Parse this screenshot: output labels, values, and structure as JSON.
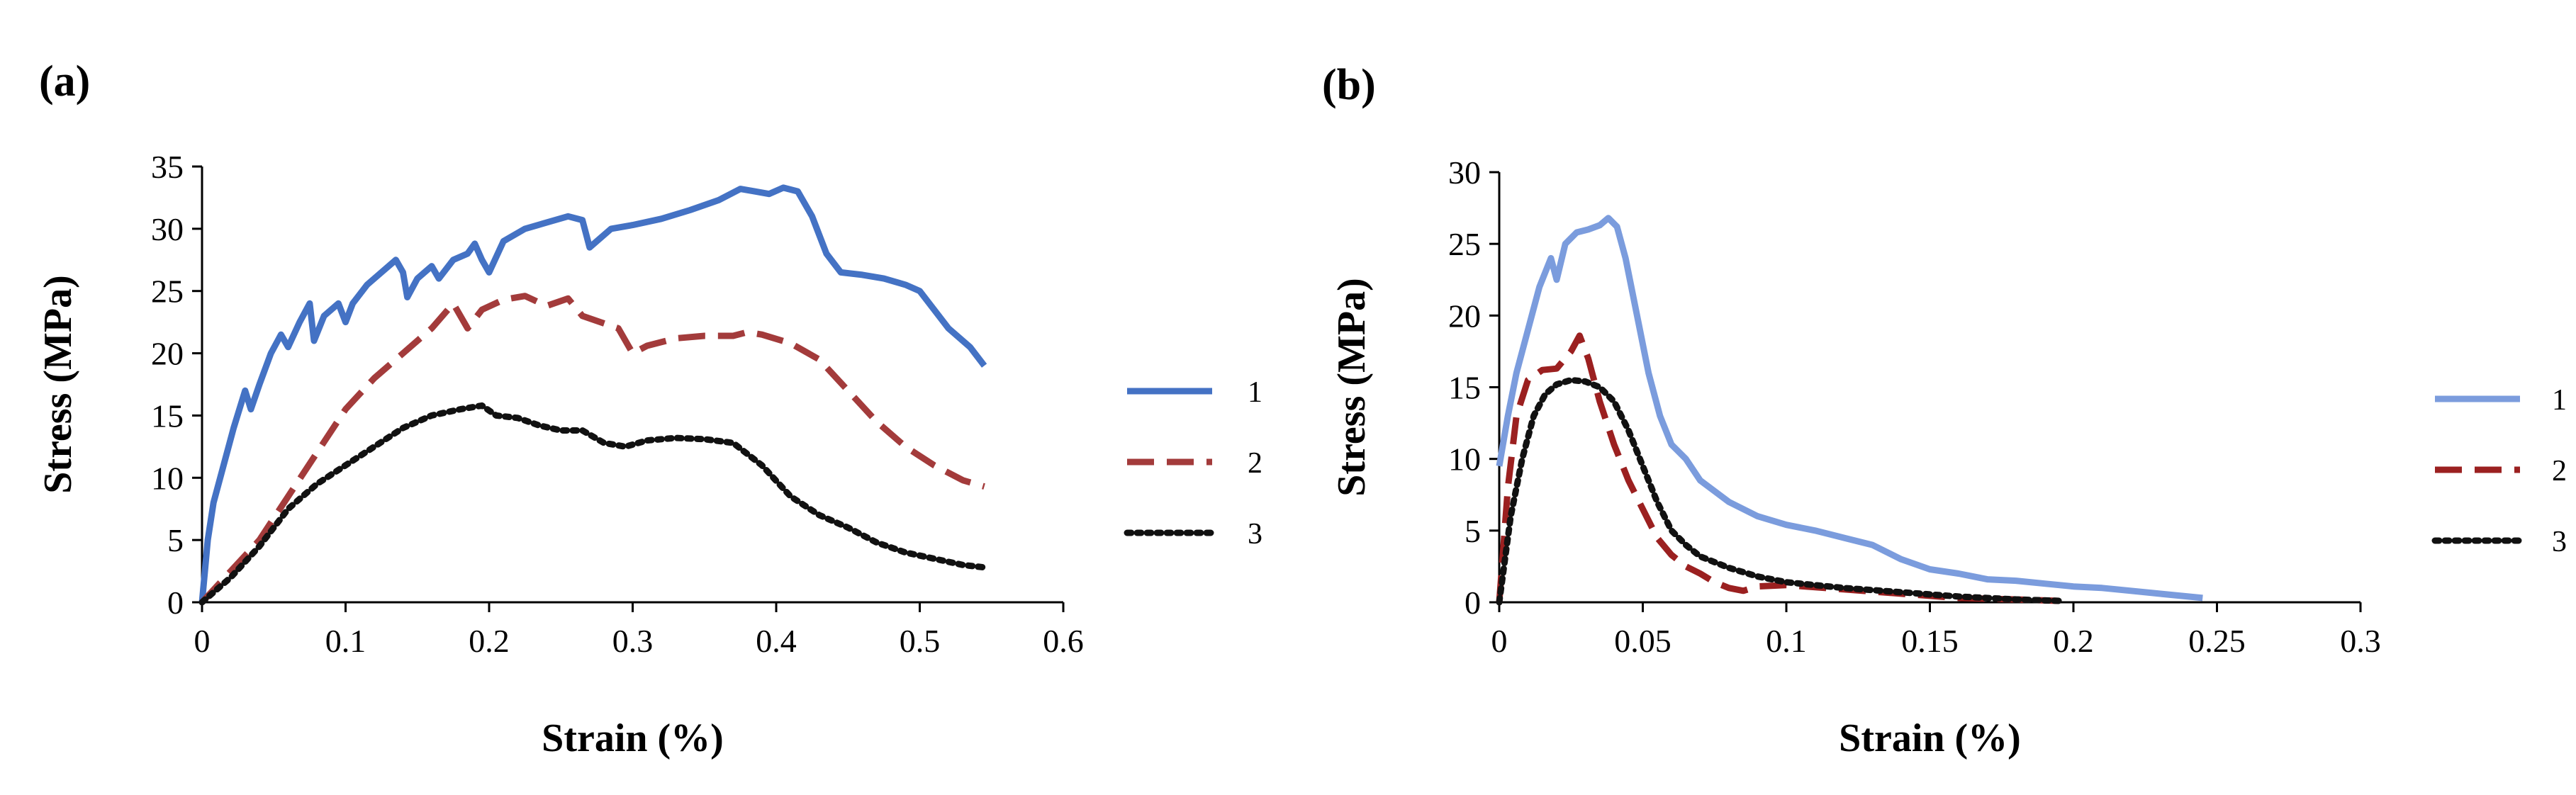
{
  "chart_data": [
    {
      "panel_label": "(a)",
      "type": "line",
      "xlabel": "Strain (%)",
      "ylabel": "Stress (MPa)",
      "xlim": [
        0,
        0.6
      ],
      "ylim": [
        0,
        35
      ],
      "x_ticks": [
        0,
        0.1,
        0.2,
        0.3,
        0.4,
        0.5,
        0.6
      ],
      "x_tick_labels": [
        "0",
        "0.1",
        "0.2",
        "0.3",
        "0.4",
        "0.5",
        "0.6"
      ],
      "y_ticks": [
        0,
        5,
        10,
        15,
        20,
        25,
        30,
        35
      ],
      "y_tick_labels": [
        "0",
        "5",
        "10",
        "15",
        "20",
        "25",
        "30",
        "35"
      ],
      "grid": false,
      "legend_position": "right",
      "series": [
        {
          "name": "1",
          "color": "#4472C4",
          "dash": "solid",
          "points": [
            [
              0,
              0
            ],
            [
              0.004,
              5
            ],
            [
              0.008,
              8
            ],
            [
              0.015,
              11
            ],
            [
              0.022,
              14
            ],
            [
              0.03,
              17
            ],
            [
              0.034,
              15.5
            ],
            [
              0.04,
              17.5
            ],
            [
              0.048,
              20
            ],
            [
              0.055,
              21.5
            ],
            [
              0.06,
              20.5
            ],
            [
              0.068,
              22.5
            ],
            [
              0.075,
              24
            ],
            [
              0.078,
              21
            ],
            [
              0.085,
              23
            ],
            [
              0.095,
              24
            ],
            [
              0.1,
              22.5
            ],
            [
              0.105,
              24
            ],
            [
              0.115,
              25.5
            ],
            [
              0.125,
              26.5
            ],
            [
              0.135,
              27.5
            ],
            [
              0.14,
              26.5
            ],
            [
              0.143,
              24.5
            ],
            [
              0.15,
              26
            ],
            [
              0.16,
              27
            ],
            [
              0.165,
              26
            ],
            [
              0.175,
              27.5
            ],
            [
              0.185,
              28
            ],
            [
              0.19,
              28.8
            ],
            [
              0.195,
              27.5
            ],
            [
              0.2,
              26.5
            ],
            [
              0.21,
              29
            ],
            [
              0.225,
              30
            ],
            [
              0.24,
              30.5
            ],
            [
              0.255,
              31
            ],
            [
              0.265,
              30.7
            ],
            [
              0.27,
              28.5
            ],
            [
              0.285,
              30
            ],
            [
              0.3,
              30.3
            ],
            [
              0.32,
              30.8
            ],
            [
              0.34,
              31.5
            ],
            [
              0.36,
              32.3
            ],
            [
              0.375,
              33.2
            ],
            [
              0.385,
              33
            ],
            [
              0.395,
              32.8
            ],
            [
              0.405,
              33.3
            ],
            [
              0.415,
              33
            ],
            [
              0.425,
              31
            ],
            [
              0.435,
              28
            ],
            [
              0.445,
              26.5
            ],
            [
              0.46,
              26.3
            ],
            [
              0.475,
              26
            ],
            [
              0.49,
              25.5
            ],
            [
              0.5,
              25
            ],
            [
              0.51,
              23.5
            ],
            [
              0.52,
              22
            ],
            [
              0.535,
              20.5
            ],
            [
              0.545,
              19
            ]
          ]
        },
        {
          "name": "2",
          "color": "#A33B3B",
          "dash": "dashed",
          "points": [
            [
              0,
              0
            ],
            [
              0.02,
              2.5
            ],
            [
              0.04,
              5
            ],
            [
              0.06,
              8.5
            ],
            [
              0.08,
              12
            ],
            [
              0.1,
              15.5
            ],
            [
              0.12,
              18
            ],
            [
              0.14,
              20
            ],
            [
              0.16,
              22
            ],
            [
              0.175,
              24
            ],
            [
              0.185,
              22
            ],
            [
              0.195,
              23.5
            ],
            [
              0.21,
              24.3
            ],
            [
              0.225,
              24.6
            ],
            [
              0.24,
              23.8
            ],
            [
              0.255,
              24.4
            ],
            [
              0.265,
              23
            ],
            [
              0.28,
              22.4
            ],
            [
              0.29,
              22
            ],
            [
              0.3,
              20
            ],
            [
              0.31,
              20.6
            ],
            [
              0.33,
              21.2
            ],
            [
              0.35,
              21.4
            ],
            [
              0.37,
              21.4
            ],
            [
              0.38,
              21.7
            ],
            [
              0.39,
              21.5
            ],
            [
              0.41,
              20.8
            ],
            [
              0.43,
              19.5
            ],
            [
              0.45,
              17
            ],
            [
              0.47,
              14.5
            ],
            [
              0.49,
              12.5
            ],
            [
              0.51,
              11
            ],
            [
              0.53,
              9.8
            ],
            [
              0.545,
              9.3
            ]
          ]
        },
        {
          "name": "3",
          "color": "#111111",
          "dash": "dotted",
          "points": [
            [
              0,
              0
            ],
            [
              0.02,
              2
            ],
            [
              0.04,
              4.5
            ],
            [
              0.06,
              7.5
            ],
            [
              0.08,
              9.5
            ],
            [
              0.1,
              11
            ],
            [
              0.12,
              12.5
            ],
            [
              0.14,
              14
            ],
            [
              0.16,
              15
            ],
            [
              0.18,
              15.5
            ],
            [
              0.195,
              15.8
            ],
            [
              0.205,
              15
            ],
            [
              0.22,
              14.8
            ],
            [
              0.235,
              14.2
            ],
            [
              0.25,
              13.8
            ],
            [
              0.265,
              13.8
            ],
            [
              0.28,
              12.8
            ],
            [
              0.295,
              12.5
            ],
            [
              0.31,
              13
            ],
            [
              0.33,
              13.2
            ],
            [
              0.35,
              13.1
            ],
            [
              0.37,
              12.8
            ],
            [
              0.39,
              11
            ],
            [
              0.41,
              8.5
            ],
            [
              0.43,
              7
            ],
            [
              0.45,
              6
            ],
            [
              0.47,
              4.8
            ],
            [
              0.49,
              4
            ],
            [
              0.51,
              3.5
            ],
            [
              0.53,
              3
            ],
            [
              0.545,
              2.8
            ]
          ]
        }
      ]
    },
    {
      "panel_label": "(b)",
      "type": "line",
      "xlabel": "Strain (%)",
      "ylabel": "Stress (MPa)",
      "xlim": [
        0,
        0.3
      ],
      "ylim": [
        0,
        30
      ],
      "x_ticks": [
        0,
        0.05,
        0.1,
        0.15,
        0.2,
        0.25,
        0.3
      ],
      "x_tick_labels": [
        "0",
        "0.05",
        "0.1",
        "0.15",
        "0.2",
        "0.25",
        "0.3"
      ],
      "y_ticks": [
        0,
        5,
        10,
        15,
        20,
        25,
        30
      ],
      "y_tick_labels": [
        "0",
        "5",
        "10",
        "15",
        "20",
        "25",
        "30"
      ],
      "grid": false,
      "legend_position": "right",
      "series": [
        {
          "name": "1",
          "color": "#7B9CDD",
          "dash": "solid",
          "points": [
            [
              0,
              9.5
            ],
            [
              0.003,
              13
            ],
            [
              0.006,
              16
            ],
            [
              0.01,
              19
            ],
            [
              0.014,
              22
            ],
            [
              0.018,
              24
            ],
            [
              0.02,
              22.5
            ],
            [
              0.023,
              25
            ],
            [
              0.027,
              25.8
            ],
            [
              0.031,
              26
            ],
            [
              0.035,
              26.3
            ],
            [
              0.038,
              26.8
            ],
            [
              0.041,
              26.2
            ],
            [
              0.044,
              24
            ],
            [
              0.048,
              20
            ],
            [
              0.052,
              16
            ],
            [
              0.056,
              13
            ],
            [
              0.06,
              11
            ],
            [
              0.065,
              10
            ],
            [
              0.07,
              8.5
            ],
            [
              0.08,
              7
            ],
            [
              0.09,
              6
            ],
            [
              0.1,
              5.4
            ],
            [
              0.11,
              5
            ],
            [
              0.12,
              4.5
            ],
            [
              0.13,
              4
            ],
            [
              0.14,
              3
            ],
            [
              0.15,
              2.3
            ],
            [
              0.16,
              2
            ],
            [
              0.17,
              1.6
            ],
            [
              0.18,
              1.5
            ],
            [
              0.19,
              1.3
            ],
            [
              0.2,
              1.1
            ],
            [
              0.21,
              1
            ],
            [
              0.22,
              0.8
            ],
            [
              0.23,
              0.6
            ],
            [
              0.24,
              0.4
            ],
            [
              0.245,
              0.3
            ]
          ]
        },
        {
          "name": "2",
          "color": "#9B2020",
          "dash": "dashed",
          "points": [
            [
              0,
              0
            ],
            [
              0.003,
              8
            ],
            [
              0.006,
              13
            ],
            [
              0.01,
              15.5
            ],
            [
              0.015,
              16.2
            ],
            [
              0.02,
              16.3
            ],
            [
              0.025,
              17.5
            ],
            [
              0.028,
              18.6
            ],
            [
              0.031,
              17
            ],
            [
              0.035,
              14
            ],
            [
              0.04,
              11
            ],
            [
              0.045,
              8.5
            ],
            [
              0.05,
              6.5
            ],
            [
              0.055,
              4.5
            ],
            [
              0.06,
              3.3
            ],
            [
              0.065,
              2.5
            ],
            [
              0.07,
              2
            ],
            [
              0.075,
              1.4
            ],
            [
              0.08,
              1
            ],
            [
              0.085,
              0.8
            ],
            [
              0.09,
              1.1
            ],
            [
              0.1,
              1.2
            ],
            [
              0.12,
              0.9
            ],
            [
              0.14,
              0.6
            ],
            [
              0.16,
              0.3
            ],
            [
              0.18,
              0.2
            ],
            [
              0.195,
              0.1
            ]
          ]
        },
        {
          "name": "3",
          "color": "#111111",
          "dash": "dotted",
          "points": [
            [
              0,
              0
            ],
            [
              0.004,
              6
            ],
            [
              0.008,
              10
            ],
            [
              0.012,
              13
            ],
            [
              0.016,
              14.5
            ],
            [
              0.02,
              15.2
            ],
            [
              0.025,
              15.5
            ],
            [
              0.03,
              15.4
            ],
            [
              0.035,
              15
            ],
            [
              0.04,
              14
            ],
            [
              0.045,
              12
            ],
            [
              0.05,
              9.5
            ],
            [
              0.055,
              7
            ],
            [
              0.06,
              5
            ],
            [
              0.065,
              4
            ],
            [
              0.07,
              3.2
            ],
            [
              0.08,
              2.4
            ],
            [
              0.09,
              1.8
            ],
            [
              0.1,
              1.4
            ],
            [
              0.12,
              1
            ],
            [
              0.14,
              0.7
            ],
            [
              0.16,
              0.4
            ],
            [
              0.18,
              0.2
            ],
            [
              0.195,
              0.1
            ]
          ]
        }
      ]
    }
  ]
}
